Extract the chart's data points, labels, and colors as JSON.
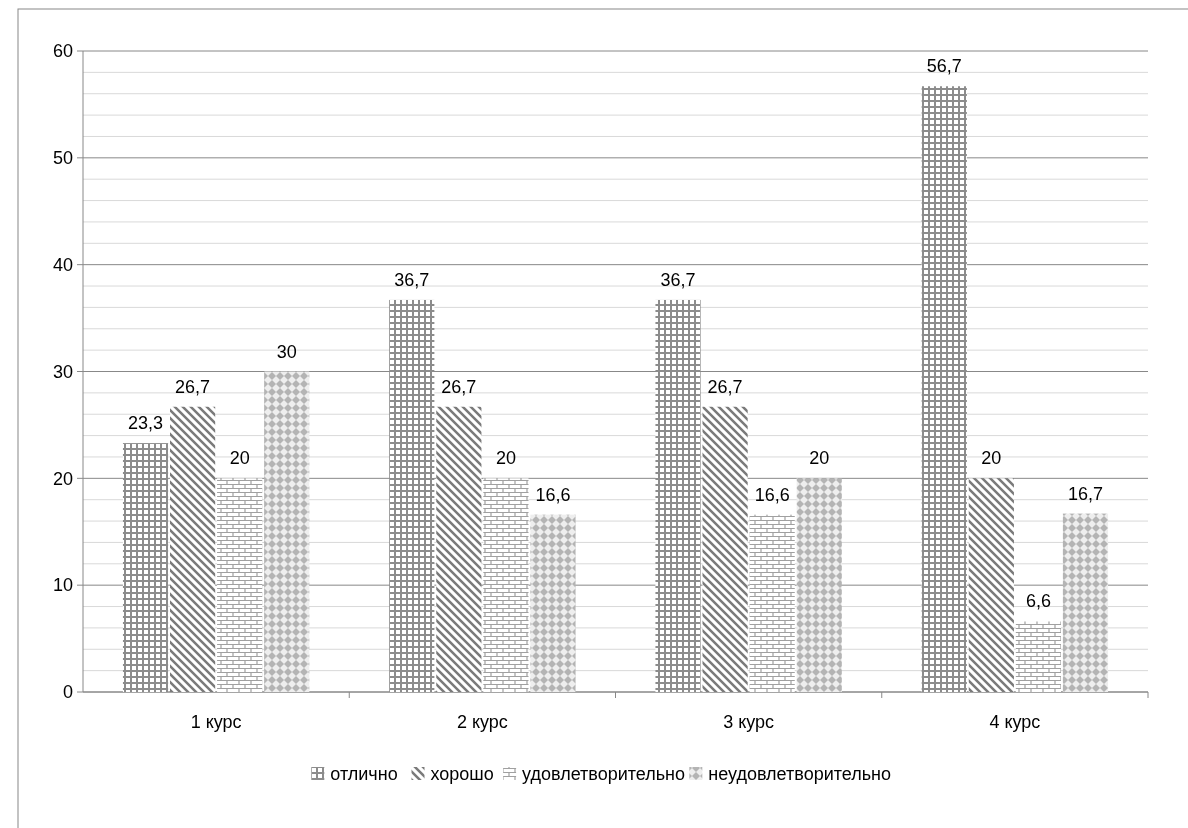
{
  "chart_data": {
    "type": "bar",
    "categories": [
      "1 курс",
      "2 курс",
      "3 курс",
      "4 курс"
    ],
    "series": [
      {
        "name": "отлично",
        "color": "#8c8c8c",
        "values": [
          23.3,
          36.7,
          36.7,
          56.7
        ]
      },
      {
        "name": "хорошо",
        "color": "#7a7a7a",
        "values": [
          26.7,
          26.7,
          26.7,
          20
        ]
      },
      {
        "name": "удовлетворительно",
        "color": "#a0a0a0",
        "values": [
          20,
          20,
          16.6,
          6.6
        ]
      },
      {
        "name": "неудовлетворительно",
        "color": "#b4b4b4",
        "values": [
          30,
          16.6,
          20,
          16.7
        ]
      }
    ],
    "value_labels": [
      [
        "23,3",
        "36,7",
        "36,7",
        "56,7"
      ],
      [
        "26,7",
        "26,7",
        "26,7",
        "20"
      ],
      [
        "20",
        "20",
        "16,6",
        "6,6"
      ],
      [
        "30",
        "16,6",
        "20",
        "16,7"
      ]
    ],
    "ylim": [
      0,
      60
    ],
    "yticks": [
      0,
      10,
      20,
      30,
      40,
      50,
      60
    ],
    "grid": "y",
    "legend": "bottom"
  }
}
